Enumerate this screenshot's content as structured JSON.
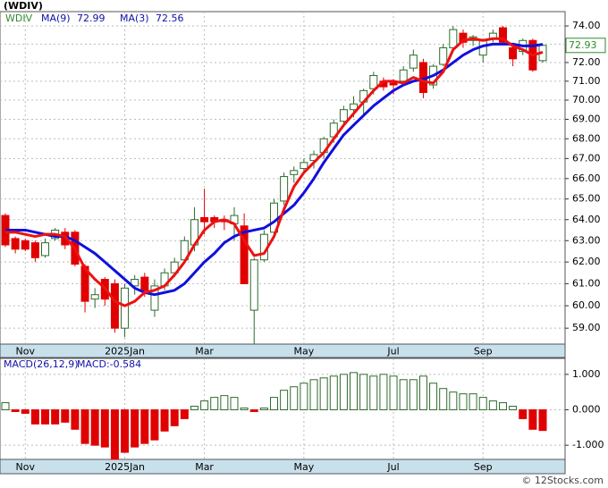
{
  "chart_data": [
    {
      "type": "candlestick",
      "title": "(WDIV)",
      "name": "WDIV",
      "log": true,
      "grid": true,
      "up_color": "#2e6b2e",
      "down_color": "#e00000",
      "categories": [
        null,
        null,
        "Nov",
        null,
        null,
        null,
        null,
        null,
        null,
        null,
        null,
        null,
        "2025Jan",
        null,
        null,
        null,
        null,
        null,
        null,
        null,
        "Mar",
        null,
        null,
        null,
        null,
        null,
        null,
        null,
        null,
        null,
        "May",
        null,
        null,
        null,
        null,
        null,
        null,
        null,
        null,
        "Jul",
        null,
        null,
        null,
        null,
        null,
        null,
        null,
        null,
        "Sep",
        null,
        null,
        null,
        null,
        null,
        null
      ],
      "open": [
        64.2,
        63.1,
        63.0,
        62.9,
        62.3,
        63.1,
        63.4,
        63.4,
        61.8,
        60.3,
        61.2,
        61.0,
        59.0,
        60.9,
        61.3,
        59.8,
        60.9,
        61.5,
        62.1,
        62.8,
        64.1,
        64.1,
        64.0,
        63.8,
        63.7,
        59.8,
        62.1,
        63.4,
        64.9,
        66.2,
        66.5,
        66.9,
        67.3,
        68.1,
        68.9,
        69.5,
        69.9,
        70.6,
        71.0,
        70.9,
        71.0,
        71.7,
        72.0,
        70.8,
        71.9,
        72.8,
        73.6,
        73.2,
        72.4,
        73.3,
        73.9,
        72.8,
        72.6,
        73.2,
        72.1
      ],
      "high": [
        64.3,
        63.2,
        63.1,
        63.0,
        63.1,
        63.6,
        63.6,
        63.5,
        61.9,
        60.8,
        61.3,
        61.2,
        61.0,
        61.4,
        61.5,
        61.2,
        61.7,
        62.2,
        63.2,
        64.6,
        65.5,
        64.2,
        64.2,
        64.6,
        64.3,
        62.2,
        63.5,
        65.0,
        66.3,
        66.6,
        67.0,
        67.4,
        68.1,
        69.0,
        69.7,
        70.2,
        70.6,
        71.5,
        71.2,
        71.1,
        71.8,
        72.7,
        72.2,
        71.9,
        73.0,
        74.0,
        73.8,
        73.5,
        73.3,
        73.8,
        74.0,
        72.9,
        73.3,
        73.3,
        73.0
      ],
      "low": [
        62.7,
        62.4,
        62.5,
        62.0,
        62.2,
        63.0,
        62.6,
        61.8,
        59.7,
        59.9,
        60.0,
        58.8,
        58.6,
        60.5,
        60.4,
        59.5,
        60.7,
        61.3,
        62.0,
        62.5,
        63.3,
        63.6,
        63.5,
        63.0,
        61.0,
        58.3,
        62.0,
        63.3,
        64.7,
        65.8,
        66.2,
        66.5,
        67.0,
        67.8,
        68.6,
        69.1,
        69.2,
        70.3,
        70.5,
        70.3,
        70.8,
        71.5,
        70.1,
        70.6,
        71.8,
        72.7,
        72.8,
        72.9,
        72.0,
        73.1,
        73.0,
        71.8,
        72.4,
        71.5,
        72.0
      ],
      "close": [
        62.8,
        62.6,
        62.6,
        62.2,
        62.9,
        63.5,
        62.8,
        61.9,
        60.2,
        60.5,
        60.3,
        59.0,
        60.8,
        61.2,
        60.7,
        60.9,
        61.5,
        62.0,
        63.0,
        64.0,
        63.9,
        63.9,
        63.9,
        64.2,
        61.0,
        62.1,
        63.3,
        64.8,
        66.1,
        66.4,
        66.8,
        67.2,
        68.0,
        68.8,
        69.5,
        69.8,
        70.5,
        71.3,
        70.7,
        70.8,
        71.6,
        72.4,
        70.4,
        71.8,
        72.8,
        73.8,
        73.1,
        73.4,
        73.2,
        73.6,
        73.1,
        72.2,
        73.2,
        71.6,
        72.93
      ],
      "series": [
        {
          "name": "MA(9)",
          "color": "#1010dd",
          "values": [
            63.5,
            63.5,
            63.5,
            63.4,
            63.3,
            63.2,
            63.2,
            63.0,
            62.7,
            62.4,
            62.0,
            61.6,
            61.2,
            60.8,
            60.6,
            60.5,
            60.6,
            60.7,
            61.0,
            61.5,
            62.0,
            62.4,
            62.9,
            63.2,
            63.4,
            63.5,
            63.6,
            63.9,
            64.3,
            64.7,
            65.3,
            66.0,
            66.8,
            67.5,
            68.2,
            68.7,
            69.2,
            69.7,
            70.1,
            70.5,
            70.8,
            71.0,
            71.1,
            71.3,
            71.6,
            72.0,
            72.4,
            72.7,
            72.9,
            73.0,
            73.0,
            73.0,
            72.9,
            72.9,
            72.99
          ]
        },
        {
          "name": "MA(3)",
          "color": "#ee1111",
          "values": [
            63.4,
            63.4,
            63.3,
            63.2,
            63.3,
            63.3,
            63.2,
            62.6,
            61.7,
            61.2,
            60.8,
            60.2,
            60.0,
            60.2,
            60.6,
            60.7,
            60.9,
            61.4,
            62.0,
            62.8,
            63.5,
            63.9,
            64.0,
            63.8,
            63.0,
            62.3,
            62.4,
            63.2,
            64.5,
            65.6,
            66.3,
            66.8,
            67.3,
            68.0,
            68.7,
            69.3,
            69.9,
            70.5,
            71.0,
            71.0,
            70.9,
            71.2,
            71.0,
            70.9,
            71.5,
            72.7,
            73.2,
            73.3,
            73.2,
            73.3,
            73.3,
            72.9,
            72.7,
            72.4,
            72.56
          ]
        }
      ],
      "ylim": [
        58.3,
        74.8
      ],
      "yticks": [
        {
          "value": 59,
          "label": "59.00"
        },
        {
          "value": 60,
          "label": "60.00"
        },
        {
          "value": 61,
          "label": "61.00"
        },
        {
          "value": 62,
          "label": "62.00"
        },
        {
          "value": 63,
          "label": "63.00"
        },
        {
          "value": 64,
          "label": "64.00"
        },
        {
          "value": 65,
          "label": "65.00"
        },
        {
          "value": 66,
          "label": "66.00"
        },
        {
          "value": 67,
          "label": "67.00"
        },
        {
          "value": 68,
          "label": "68.00"
        },
        {
          "value": 69,
          "label": "69.00"
        },
        {
          "value": 70,
          "label": "70.00"
        },
        {
          "value": 71,
          "label": "71.00"
        },
        {
          "value": 72,
          "label": "72.00"
        },
        {
          "value": 73,
          "label": "73.00"
        },
        {
          "value": 74,
          "label": "74.00"
        }
      ]
    },
    {
      "type": "bar",
      "name": "MACD(26,12,9)",
      "label": "MACD:-0.584",
      "grid": true,
      "up_color": "#2e6b2e",
      "down_color": "#e00000",
      "values": [
        0.2,
        -0.05,
        -0.1,
        -0.4,
        -0.4,
        -0.4,
        -0.35,
        -0.55,
        -0.95,
        -1.0,
        -1.05,
        -1.4,
        -1.2,
        -1.05,
        -0.95,
        -0.85,
        -0.6,
        -0.45,
        -0.25,
        0.1,
        0.25,
        0.35,
        0.4,
        0.35,
        0.05,
        -0.05,
        0.05,
        0.35,
        0.55,
        0.65,
        0.75,
        0.85,
        0.9,
        0.95,
        1.0,
        1.05,
        1.0,
        0.95,
        1.0,
        0.95,
        0.85,
        0.85,
        0.95,
        0.75,
        0.6,
        0.5,
        0.45,
        0.45,
        0.35,
        0.25,
        0.2,
        0.1,
        -0.25,
        -0.55,
        -0.584
      ],
      "ylim": [
        -1.4,
        1.45
      ],
      "yticks": [
        {
          "value": -1,
          "label": "-1.000"
        },
        {
          "value": 0,
          "label": "0.000"
        },
        {
          "value": 1,
          "label": "1.000"
        }
      ]
    }
  ],
  "credit": "© 12Stocks.com"
}
